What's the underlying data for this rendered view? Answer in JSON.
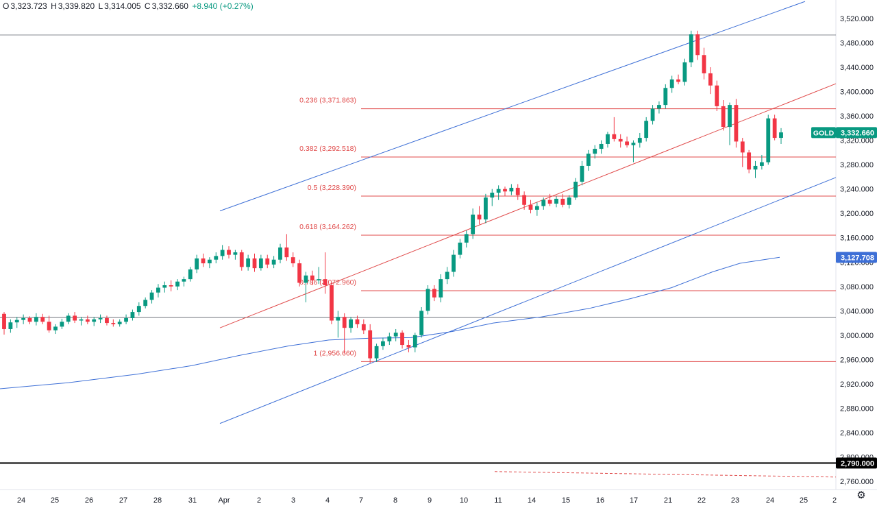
{
  "header": {
    "open_label": "O",
    "open": "3,323.723",
    "high_label": "H",
    "high": "3,339.820",
    "low_label": "L",
    "low": "3,314.005",
    "close_label": "C",
    "close": "3,332.660",
    "change": "+8.940 (+0.27%)"
  },
  "symbol_tag": "GOLD",
  "settings_icon": "gear-icon",
  "colors": {
    "up": "#089981",
    "down": "#f23645",
    "channel": "#3d6fd6",
    "fib": "#e04a4a",
    "ma": "#3d6fd6"
  },
  "chart_data": {
    "type": "candlestick",
    "symbol": "GOLD",
    "ylim": [
      2740,
      3540
    ],
    "y_ticks": [
      "3,520.000",
      "3,480.000",
      "3,440.000",
      "3,400.000",
      "3,360.000",
      "3,320.000",
      "3,280.000",
      "3,240.000",
      "3,200.000",
      "3,160.000",
      "3,120.000",
      "3,080.000",
      "3,040.000",
      "3,000.000",
      "2,960.000",
      "2,920.000",
      "2,880.000",
      "2,840.000",
      "2,800.000",
      "2,760.000"
    ],
    "y_tick_values": [
      3520,
      3480,
      3440,
      3400,
      3360,
      3320,
      3280,
      3240,
      3200,
      3160,
      3120,
      3080,
      3040,
      3000,
      2960,
      2920,
      2880,
      2840,
      2800,
      2760
    ],
    "x_ticks": [
      "24",
      "25",
      "26",
      "27",
      "28",
      "31",
      "Apr",
      "2",
      "3",
      "4",
      "7",
      "8",
      "9",
      "10",
      "11",
      "14",
      "15",
      "16",
      "17",
      "21",
      "22",
      "23",
      "24",
      "25",
      "2"
    ],
    "price_labels": {
      "last": {
        "value": 3332.66,
        "text": "3,332.660"
      },
      "ma": {
        "value": 3127.708,
        "text": "3,127.708"
      },
      "level": {
        "value": 2790.0,
        "text": "2,790.000"
      }
    },
    "fib_levels": [
      {
        "label": "0.236 (3,371.863)",
        "value": 3371.863
      },
      {
        "label": "0.382 (3,292.518)",
        "value": 3292.518
      },
      {
        "label": "0.5 (3,228.390)",
        "value": 3228.39
      },
      {
        "label": "0.618 (3,164.262)",
        "value": 3164.262
      },
      {
        "label": "0.786 (3,072.960)",
        "value": 3072.96
      },
      {
        "label": "1 (2,956.660)",
        "value": 2956.66
      }
    ],
    "horizontal_lines": [
      3493,
      3029
    ],
    "candles": [
      [
        3035,
        3038,
        3001,
        3010
      ],
      [
        3010,
        3026,
        3004,
        3021
      ],
      [
        3021,
        3030,
        3012,
        3025
      ],
      [
        3025,
        3034,
        3018,
        3028
      ],
      [
        3028,
        3031,
        3018,
        3022
      ],
      [
        3022,
        3036,
        3016,
        3030
      ],
      [
        3030,
        3035,
        3018,
        3022
      ],
      [
        3022,
        3032,
        3004,
        3008
      ],
      [
        3008,
        3018,
        3002,
        3014
      ],
      [
        3014,
        3027,
        3010,
        3022
      ],
      [
        3022,
        3036,
        3018,
        3032
      ],
      [
        3032,
        3038,
        3020,
        3024
      ],
      [
        3024,
        3030,
        3016,
        3026
      ],
      [
        3026,
        3032,
        3018,
        3022
      ],
      [
        3022,
        3030,
        3015,
        3026
      ],
      [
        3026,
        3034,
        3020,
        3028
      ],
      [
        3028,
        3032,
        3016,
        3020
      ],
      [
        3020,
        3026,
        3014,
        3018
      ],
      [
        3018,
        3026,
        3014,
        3022
      ],
      [
        3022,
        3034,
        3018,
        3028
      ],
      [
        3028,
        3042,
        3024,
        3038
      ],
      [
        3038,
        3054,
        3032,
        3048
      ],
      [
        3048,
        3062,
        3044,
        3058
      ],
      [
        3058,
        3074,
        3052,
        3070
      ],
      [
        3070,
        3084,
        3062,
        3078
      ],
      [
        3078,
        3088,
        3070,
        3082
      ],
      [
        3082,
        3090,
        3072,
        3080
      ],
      [
        3080,
        3092,
        3074,
        3088
      ],
      [
        3088,
        3096,
        3080,
        3092
      ],
      [
        3092,
        3112,
        3088,
        3108
      ],
      [
        3108,
        3132,
        3102,
        3126
      ],
      [
        3126,
        3134,
        3112,
        3118
      ],
      [
        3118,
        3128,
        3110,
        3124
      ],
      [
        3124,
        3136,
        3118,
        3130
      ],
      [
        3130,
        3148,
        3124,
        3140
      ],
      [
        3140,
        3146,
        3126,
        3132
      ],
      [
        3132,
        3140,
        3124,
        3136
      ],
      [
        3136,
        3140,
        3106,
        3112
      ],
      [
        3112,
        3132,
        3106,
        3126
      ],
      [
        3126,
        3134,
        3104,
        3110
      ],
      [
        3110,
        3132,
        3106,
        3126
      ],
      [
        3126,
        3132,
        3110,
        3116
      ],
      [
        3116,
        3130,
        3110,
        3124
      ],
      [
        3124,
        3150,
        3118,
        3144
      ],
      [
        3144,
        3166,
        3122,
        3128
      ],
      [
        3128,
        3136,
        3112,
        3118
      ],
      [
        3118,
        3124,
        3080,
        3086
      ],
      [
        3086,
        3104,
        3054,
        3098
      ],
      [
        3098,
        3106,
        3082,
        3090
      ],
      [
        3090,
        3112,
        3084,
        3092
      ],
      [
        3092,
        3136,
        3068,
        3082
      ],
      [
        3082,
        3086,
        3018,
        3024
      ],
      [
        3024,
        3040,
        2996,
        3030
      ],
      [
        3030,
        3036,
        2970,
        3012
      ],
      [
        3012,
        3030,
        3004,
        3026
      ],
      [
        3026,
        3032,
        3012,
        3018
      ],
      [
        3018,
        3026,
        3002,
        3008
      ],
      [
        3008,
        3018,
        2954,
        2962
      ],
      [
        2962,
        2986,
        2956,
        2982
      ],
      [
        2982,
        2996,
        2976,
        2990
      ],
      [
        2990,
        3004,
        2984,
        2998
      ],
      [
        2998,
        3010,
        2990,
        3004
      ],
      [
        3004,
        3008,
        2978,
        2984
      ],
      [
        2984,
        2992,
        2972,
        2980
      ],
      [
        2980,
        3004,
        2972,
        3000
      ],
      [
        3000,
        3046,
        2996,
        3040
      ],
      [
        3040,
        3082,
        3034,
        3076
      ],
      [
        3076,
        3082,
        3056,
        3062
      ],
      [
        3062,
        3100,
        3054,
        3092
      ],
      [
        3092,
        3112,
        3084,
        3104
      ],
      [
        3104,
        3140,
        3096,
        3132
      ],
      [
        3132,
        3158,
        3126,
        3152
      ],
      [
        3152,
        3172,
        3144,
        3166
      ],
      [
        3166,
        3208,
        3158,
        3198
      ],
      [
        3198,
        3212,
        3182,
        3190
      ],
      [
        3190,
        3232,
        3184,
        3226
      ],
      [
        3226,
        3240,
        3212,
        3234
      ],
      [
        3234,
        3246,
        3222,
        3240
      ],
      [
        3240,
        3244,
        3228,
        3236
      ],
      [
        3236,
        3248,
        3230,
        3242
      ],
      [
        3242,
        3248,
        3222,
        3230
      ],
      [
        3230,
        3236,
        3206,
        3214
      ],
      [
        3214,
        3222,
        3200,
        3206
      ],
      [
        3206,
        3218,
        3196,
        3212
      ],
      [
        3212,
        3226,
        3206,
        3222
      ],
      [
        3222,
        3232,
        3212,
        3216
      ],
      [
        3216,
        3228,
        3210,
        3224
      ],
      [
        3224,
        3232,
        3210,
        3214
      ],
      [
        3214,
        3230,
        3208,
        3226
      ],
      [
        3226,
        3258,
        3222,
        3252
      ],
      [
        3252,
        3286,
        3246,
        3278
      ],
      [
        3278,
        3304,
        3270,
        3298
      ],
      [
        3298,
        3312,
        3290,
        3306
      ],
      [
        3306,
        3320,
        3298,
        3314
      ],
      [
        3314,
        3334,
        3308,
        3330
      ],
      [
        3330,
        3358,
        3318,
        3322
      ],
      [
        3322,
        3330,
        3308,
        3318
      ],
      [
        3318,
        3326,
        3308,
        3312
      ],
      [
        3312,
        3320,
        3284,
        3316
      ],
      [
        3316,
        3332,
        3308,
        3324
      ],
      [
        3324,
        3358,
        3318,
        3352
      ],
      [
        3352,
        3378,
        3346,
        3372
      ],
      [
        3372,
        3384,
        3364,
        3378
      ],
      [
        3378,
        3412,
        3372,
        3406
      ],
      [
        3406,
        3426,
        3398,
        3420
      ],
      [
        3420,
        3428,
        3412,
        3416
      ],
      [
        3416,
        3454,
        3410,
        3448
      ],
      [
        3448,
        3500,
        3440,
        3494
      ],
      [
        3494,
        3500,
        3452,
        3460
      ],
      [
        3460,
        3472,
        3420,
        3430
      ],
      [
        3430,
        3440,
        3396,
        3410
      ],
      [
        3410,
        3418,
        3368,
        3376
      ],
      [
        3376,
        3386,
        3336,
        3342
      ],
      [
        3342,
        3382,
        3312,
        3378
      ],
      [
        3378,
        3388,
        3308,
        3318
      ],
      [
        3318,
        3324,
        3276,
        3300
      ],
      [
        3300,
        3304,
        3266,
        3272
      ],
      [
        3272,
        3286,
        3258,
        3278
      ],
      [
        3278,
        3296,
        3272,
        3284
      ],
      [
        3284,
        3362,
        3280,
        3356
      ],
      [
        3356,
        3362,
        3320,
        3324
      ],
      [
        3324,
        3340,
        3314,
        3333
      ]
    ],
    "channel_upper": [
      [
        321,
        3204
      ],
      [
        1175,
        3548
      ]
    ],
    "channel_lower": [
      [
        321,
        2855
      ],
      [
        1220,
        3259
      ]
    ],
    "channel_mid": [
      [
        321,
        3012
      ],
      [
        1220,
        3413
      ]
    ],
    "ma_line": [
      [
        0,
        2912
      ],
      [
        100,
        2922
      ],
      [
        200,
        2936
      ],
      [
        280,
        2950
      ],
      [
        350,
        2967
      ],
      [
        420,
        2982
      ],
      [
        480,
        2992
      ],
      [
        540,
        2995
      ],
      [
        600,
        2996
      ],
      [
        660,
        3006
      ],
      [
        720,
        3020
      ],
      [
        790,
        3030
      ],
      [
        860,
        3044
      ],
      [
        920,
        3060
      ],
      [
        980,
        3078
      ],
      [
        1040,
        3104
      ],
      [
        1080,
        3118
      ],
      [
        1138,
        3128
      ]
    ],
    "dashed_line": [
      [
        722,
        2776
      ],
      [
        1220,
        2767
      ]
    ]
  }
}
